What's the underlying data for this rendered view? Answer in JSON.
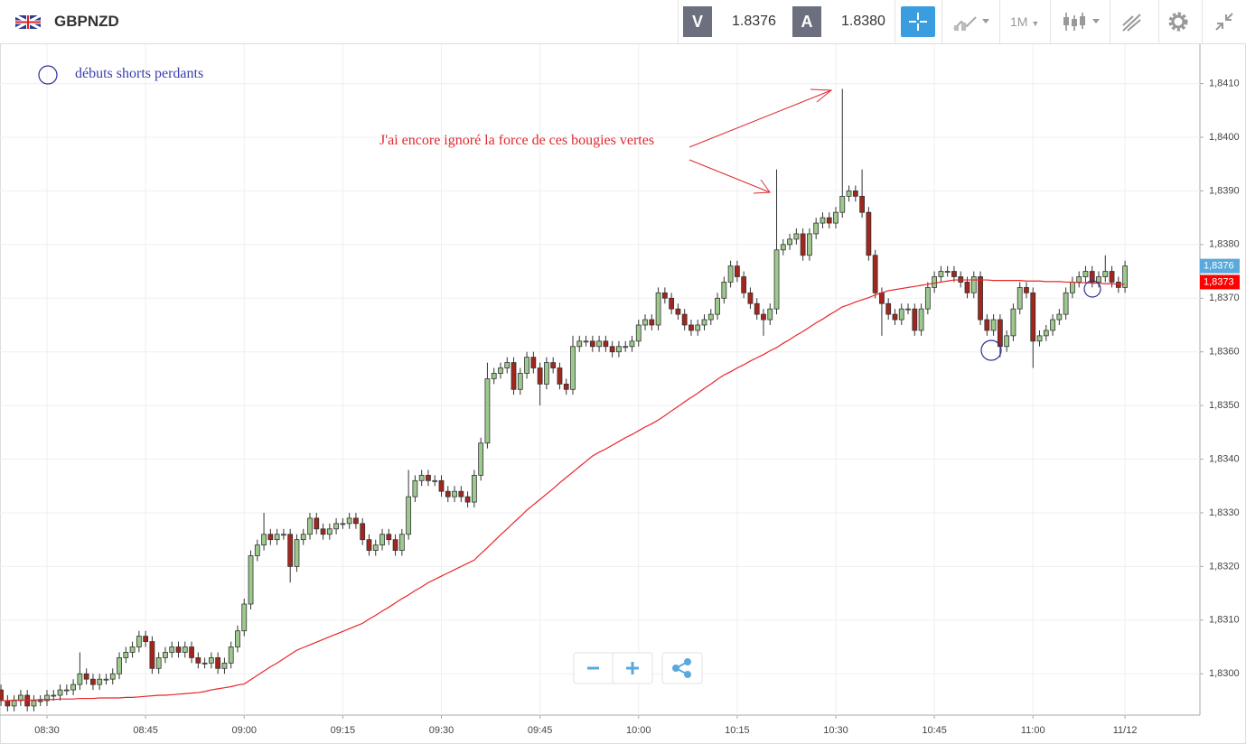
{
  "header": {
    "symbol": "GBPNZD",
    "bid_label": "V",
    "bid": "1.8376",
    "ask_label": "A",
    "ask": "1.8380",
    "timeframe": "1M"
  },
  "chart_data": {
    "type": "candlestick",
    "categories": [
      null,
      null,
      null,
      null,
      null,
      null,
      null,
      "08:30",
      null,
      null,
      null,
      null,
      null,
      null,
      null,
      null,
      null,
      null,
      null,
      null,
      null,
      null,
      "08:45",
      null,
      null,
      null,
      null,
      null,
      null,
      null,
      null,
      null,
      null,
      null,
      null,
      null,
      null,
      "09:00",
      null,
      null,
      null,
      null,
      null,
      null,
      null,
      null,
      null,
      null,
      null,
      null,
      null,
      null,
      "09:15",
      null,
      null,
      null,
      null,
      null,
      null,
      null,
      null,
      null,
      null,
      null,
      null,
      null,
      null,
      "09:30",
      null,
      null,
      null,
      null,
      null,
      null,
      null,
      null,
      null,
      null,
      null,
      null,
      null,
      null,
      "09:45",
      null,
      null,
      null,
      null,
      null,
      null,
      null,
      null,
      null,
      null,
      null,
      null,
      null,
      null,
      "10:00",
      null,
      null,
      null,
      null,
      null,
      null,
      null,
      null,
      null,
      null,
      null,
      null,
      null,
      null,
      "10:15",
      null,
      null,
      null,
      null,
      null,
      null,
      null,
      null,
      null,
      null,
      null,
      null,
      null,
      null,
      "10:30",
      null,
      null,
      null,
      null,
      null,
      null,
      null,
      null,
      null,
      null,
      null,
      null,
      null,
      null,
      "10:45",
      null,
      null,
      null,
      null,
      null,
      null,
      null,
      null,
      null,
      null,
      null,
      null,
      null,
      null,
      "11:00",
      null,
      null,
      null,
      null,
      null,
      null,
      null,
      null,
      null,
      null,
      null,
      null,
      null,
      "11/12"
    ],
    "open": [
      1.8297,
      1.8295,
      1.8294,
      1.8295,
      1.8296,
      1.8294,
      1.8295,
      1.8295,
      1.8296,
      1.8296,
      1.8297,
      1.8297,
      1.8298,
      1.83,
      1.8299,
      1.8298,
      1.8299,
      1.8299,
      1.83,
      1.8303,
      1.8304,
      1.8305,
      1.8307,
      1.8306,
      1.8301,
      1.8303,
      1.8304,
      1.8305,
      1.8304,
      1.8305,
      1.8303,
      1.8302,
      1.8302,
      1.8303,
      1.8301,
      1.8302,
      1.8305,
      1.8308,
      1.8313,
      1.8322,
      1.8324,
      1.8326,
      1.8325,
      1.8326,
      1.8326,
      1.832,
      1.8325,
      1.8326,
      1.8329,
      1.8327,
      1.8326,
      1.8327,
      1.8328,
      1.8328,
      1.8329,
      1.8328,
      1.8325,
      1.8323,
      1.8324,
      1.8326,
      1.8325,
      1.8323,
      1.8326,
      1.8333,
      1.8336,
      1.8337,
      1.8336,
      1.8336,
      1.8334,
      1.8333,
      1.8334,
      1.8333,
      1.8332,
      1.8337,
      1.8343,
      1.8355,
      1.8356,
      1.8357,
      1.8358,
      1.8353,
      1.8356,
      1.8359,
      1.8357,
      1.8354,
      1.8358,
      1.8357,
      1.8354,
      1.8353,
      1.8361,
      1.8362,
      1.8362,
      1.8361,
      1.8362,
      1.8361,
      1.836,
      1.8361,
      1.8361,
      1.8362,
      1.8365,
      1.8366,
      1.8365,
      1.8371,
      1.837,
      1.8368,
      1.8367,
      1.8365,
      1.8364,
      1.8365,
      1.8366,
      1.8367,
      1.837,
      1.8373,
      1.8376,
      1.8374,
      1.8371,
      1.8369,
      1.8367,
      1.8366,
      1.8368,
      1.8379,
      1.838,
      1.8381,
      1.8382,
      1.8378,
      1.8382,
      1.8384,
      1.8385,
      1.8384,
      1.8386,
      1.8389,
      1.839,
      1.8389,
      1.8386,
      1.8378,
      1.8371,
      1.8369,
      1.8367,
      1.8366,
      1.8368,
      1.8368,
      1.8364,
      1.8368,
      1.8372,
      1.8374,
      1.8375,
      1.8375,
      1.8374,
      1.8373,
      1.8371,
      1.8374,
      1.8366,
      1.8364,
      1.8366,
      1.8361,
      1.8363,
      1.8368,
      1.8372,
      1.8371,
      1.8362,
      1.8363,
      1.8364,
      1.8366,
      1.8367,
      1.8371,
      1.8373,
      1.8374,
      1.8375,
      1.8373,
      1.8374,
      1.8375,
      1.8373,
      1.8372
    ],
    "high": [
      1.8298,
      1.8296,
      1.8296,
      1.8297,
      1.8297,
      1.8296,
      1.8296,
      1.8297,
      1.8297,
      1.8298,
      1.8298,
      1.8299,
      1.8304,
      1.8301,
      1.83,
      1.83,
      1.83,
      1.8301,
      1.8304,
      1.8305,
      1.8306,
      1.8308,
      1.8308,
      1.8307,
      1.8304,
      1.8305,
      1.8306,
      1.8306,
      1.8306,
      1.8306,
      1.8304,
      1.8303,
      1.8304,
      1.8304,
      1.8303,
      1.8306,
      1.8309,
      1.8314,
      1.8323,
      1.8325,
      1.833,
      1.8327,
      1.8327,
      1.8327,
      1.8327,
      1.8326,
      1.8327,
      1.833,
      1.833,
      1.8328,
      1.8328,
      1.8329,
      1.8329,
      1.833,
      1.833,
      1.8329,
      1.8326,
      1.8325,
      1.8327,
      1.8327,
      1.8326,
      1.8327,
      1.8338,
      1.8337,
      1.8338,
      1.8338,
      1.8337,
      1.8337,
      1.8335,
      1.8335,
      1.8335,
      1.8334,
      1.8338,
      1.8344,
      1.8358,
      1.8357,
      1.8358,
      1.8359,
      1.8359,
      1.8357,
      1.836,
      1.836,
      1.8358,
      1.8359,
      1.8359,
      1.8358,
      1.8355,
      1.8363,
      1.8363,
      1.8363,
      1.8363,
      1.8363,
      1.8363,
      1.8362,
      1.8362,
      1.8362,
      1.8363,
      1.8366,
      1.8367,
      1.8367,
      1.8372,
      1.8372,
      1.8371,
      1.8369,
      1.8368,
      1.8366,
      1.8366,
      1.8367,
      1.8368,
      1.8371,
      1.8374,
      1.8377,
      1.8377,
      1.8375,
      1.8372,
      1.837,
      1.8368,
      1.8369,
      1.8394,
      1.8381,
      1.8382,
      1.8383,
      1.8383,
      1.8383,
      1.8385,
      1.8386,
      1.8386,
      1.8387,
      1.8409,
      1.8391,
      1.8391,
      1.8394,
      1.8387,
      1.8379,
      1.8372,
      1.837,
      1.8368,
      1.8369,
      1.8369,
      1.8369,
      1.8369,
      1.8373,
      1.8375,
      1.8376,
      1.8376,
      1.8376,
      1.8375,
      1.8374,
      1.8375,
      1.8375,
      1.8367,
      1.8367,
      1.8367,
      1.8364,
      1.8369,
      1.8373,
      1.8373,
      1.8372,
      1.8364,
      1.8365,
      1.8367,
      1.8368,
      1.8372,
      1.8374,
      1.8375,
      1.8376,
      1.8376,
      1.8375,
      1.8378,
      1.8376,
      1.8374,
      1.8377
    ],
    "low": [
      1.8294,
      1.8293,
      1.8293,
      1.8294,
      1.8293,
      1.8293,
      1.8294,
      1.8294,
      1.8295,
      1.8295,
      1.8296,
      1.8296,
      1.8297,
      1.8298,
      1.8297,
      1.8297,
      1.8298,
      1.8298,
      1.8299,
      1.8302,
      1.8303,
      1.8304,
      1.8305,
      1.83,
      1.83,
      1.8302,
      1.8303,
      1.8303,
      1.8303,
      1.8302,
      1.8301,
      1.8301,
      1.8301,
      1.83,
      1.83,
      1.8301,
      1.8304,
      1.8307,
      1.8312,
      1.8321,
      1.8323,
      1.8324,
      1.8324,
      1.8325,
      1.8317,
      1.8319,
      1.8324,
      1.8325,
      1.8326,
      1.8325,
      1.8325,
      1.8326,
      1.8327,
      1.8327,
      1.8327,
      1.8324,
      1.8322,
      1.8322,
      1.8323,
      1.8324,
      1.8322,
      1.8322,
      1.8325,
      1.8332,
      1.8335,
      1.8335,
      1.8335,
      1.8333,
      1.8332,
      1.8332,
      1.8332,
      1.8331,
      1.8331,
      1.8336,
      1.8342,
      1.8354,
      1.8355,
      1.8356,
      1.8352,
      1.8352,
      1.8355,
      1.8356,
      1.835,
      1.8353,
      1.8356,
      1.8353,
      1.8352,
      1.8352,
      1.836,
      1.8361,
      1.836,
      1.836,
      1.836,
      1.8359,
      1.8359,
      1.836,
      1.836,
      1.8361,
      1.8364,
      1.8364,
      1.8364,
      1.8369,
      1.8367,
      1.8366,
      1.8364,
      1.8363,
      1.8363,
      1.8364,
      1.8365,
      1.8366,
      1.8369,
      1.8372,
      1.8373,
      1.837,
      1.8368,
      1.8366,
      1.8363,
      1.8365,
      1.8367,
      1.8378,
      1.8379,
      1.838,
      1.8377,
      1.8377,
      1.8381,
      1.8383,
      1.8383,
      1.8383,
      1.8385,
      1.8388,
      1.8388,
      1.8385,
      1.8377,
      1.837,
      1.8363,
      1.8366,
      1.8365,
      1.8365,
      1.8367,
      1.8363,
      1.8363,
      1.8367,
      1.8371,
      1.8373,
      1.8374,
      1.8373,
      1.8372,
      1.837,
      1.837,
      1.8365,
      1.8363,
      1.8363,
      1.8359,
      1.836,
      1.8362,
      1.8367,
      1.837,
      1.8357,
      1.8361,
      1.8362,
      1.8363,
      1.8365,
      1.8366,
      1.837,
      1.8372,
      1.8373,
      1.8372,
      1.8372,
      1.8373,
      1.8372,
      1.8371,
      1.8371
    ],
    "close": [
      1.8295,
      1.8294,
      1.8295,
      1.8296,
      1.8294,
      1.8295,
      1.8295,
      1.8296,
      1.8296,
      1.8297,
      1.8297,
      1.8298,
      1.83,
      1.8299,
      1.8298,
      1.8299,
      1.8299,
      1.83,
      1.8303,
      1.8304,
      1.8305,
      1.8307,
      1.8306,
      1.8301,
      1.8303,
      1.8304,
      1.8305,
      1.8304,
      1.8305,
      1.8303,
      1.8302,
      1.8302,
      1.8303,
      1.8301,
      1.8302,
      1.8305,
      1.8308,
      1.8313,
      1.8322,
      1.8324,
      1.8326,
      1.8325,
      1.8326,
      1.8326,
      1.832,
      1.8325,
      1.8326,
      1.8329,
      1.8327,
      1.8326,
      1.8327,
      1.8328,
      1.8328,
      1.8329,
      1.8328,
      1.8325,
      1.8323,
      1.8324,
      1.8326,
      1.8325,
      1.8323,
      1.8326,
      1.8333,
      1.8336,
      1.8337,
      1.8336,
      1.8336,
      1.8334,
      1.8333,
      1.8334,
      1.8333,
      1.8332,
      1.8337,
      1.8343,
      1.8355,
      1.8356,
      1.8357,
      1.8358,
      1.8353,
      1.8356,
      1.8359,
      1.8357,
      1.8354,
      1.8358,
      1.8357,
      1.8354,
      1.8353,
      1.8361,
      1.8362,
      1.8362,
      1.8361,
      1.8362,
      1.8361,
      1.836,
      1.8361,
      1.8361,
      1.8362,
      1.8365,
      1.8366,
      1.8365,
      1.8371,
      1.837,
      1.8368,
      1.8367,
      1.8365,
      1.8364,
      1.8365,
      1.8366,
      1.8367,
      1.837,
      1.8373,
      1.8376,
      1.8374,
      1.8371,
      1.8369,
      1.8367,
      1.8366,
      1.8368,
      1.8379,
      1.838,
      1.8381,
      1.8382,
      1.8378,
      1.8382,
      1.8384,
      1.8385,
      1.8384,
      1.8386,
      1.8389,
      1.839,
      1.8389,
      1.8386,
      1.8378,
      1.8371,
      1.8369,
      1.8367,
      1.8366,
      1.8368,
      1.8368,
      1.8364,
      1.8368,
      1.8372,
      1.8374,
      1.8375,
      1.8375,
      1.8374,
      1.8373,
      1.8371,
      1.8374,
      1.8366,
      1.8364,
      1.8366,
      1.8361,
      1.8363,
      1.8368,
      1.8372,
      1.8371,
      1.8362,
      1.8363,
      1.8364,
      1.8366,
      1.8367,
      1.8371,
      1.8373,
      1.8374,
      1.8375,
      1.8373,
      1.8374,
      1.8375,
      1.8373,
      1.8372,
      1.8376
    ],
    "colors": {
      "up": "#9dc98e",
      "down": "#a3261c",
      "outline": "#333333"
    },
    "ma": {
      "color": "#e8262a",
      "values": [
        1.8295,
        1.8295,
        1.82951,
        1.82951,
        1.82951,
        1.82951,
        1.82952,
        1.82952,
        1.82952,
        1.82953,
        1.82953,
        1.82953,
        1.82954,
        1.82954,
        1.82954,
        1.82955,
        1.82955,
        1.82955,
        1.82955,
        1.82956,
        1.82956,
        1.82957,
        1.82958,
        1.82959,
        1.8296,
        1.8296,
        1.82961,
        1.82962,
        1.82963,
        1.82964,
        1.82965,
        1.82967,
        1.8297,
        1.82972,
        1.82974,
        1.82976,
        1.82979,
        1.82981,
        1.82989,
        1.82997,
        1.83005,
        1.83013,
        1.8302,
        1.83028,
        1.83036,
        1.83044,
        1.83049,
        1.83054,
        1.83059,
        1.83064,
        1.83069,
        1.83074,
        1.83079,
        1.83084,
        1.83089,
        1.83094,
        1.83102,
        1.83109,
        1.83117,
        1.83124,
        1.83132,
        1.8314,
        1.83147,
        1.83155,
        1.83162,
        1.8317,
        1.83176,
        1.83182,
        1.83188,
        1.83194,
        1.832,
        1.83206,
        1.83212,
        1.83224,
        1.83235,
        1.83247,
        1.83259,
        1.8327,
        1.83282,
        1.83293,
        1.83305,
        1.83315,
        1.83325,
        1.83335,
        1.83345,
        1.83356,
        1.83366,
        1.83376,
        1.83386,
        1.83396,
        1.83406,
        1.83413,
        1.83419,
        1.83426,
        1.83433,
        1.8344,
        1.83446,
        1.83453,
        1.8346,
        1.83466,
        1.83473,
        1.83481,
        1.8349,
        1.83498,
        1.83507,
        1.83515,
        1.83523,
        1.83532,
        1.8354,
        1.83549,
        1.83557,
        1.83563,
        1.8357,
        1.83576,
        1.83583,
        1.83589,
        1.83595,
        1.83602,
        1.83608,
        1.83616,
        1.83623,
        1.83631,
        1.83638,
        1.83646,
        1.83654,
        1.83661,
        1.83669,
        1.83676,
        1.83684,
        1.83688,
        1.83693,
        1.83697,
        1.83701,
        1.83706,
        1.8371,
        1.83714,
        1.83716,
        1.83718,
        1.8372,
        1.83722,
        1.83724,
        1.83726,
        1.83728,
        1.8373,
        1.83732,
        1.83734,
        1.83734,
        1.83734,
        1.83734,
        1.83734,
        1.83734,
        1.83733,
        1.83733,
        1.83733,
        1.83733,
        1.83733,
        1.83732,
        1.83732,
        1.83732,
        1.83731,
        1.83731,
        1.83731,
        1.8373,
        1.8373,
        1.83729,
        1.83729,
        1.83728,
        1.83728,
        1.83727,
        1.83727,
        1.83726,
        1.83726
      ]
    },
    "ylim": [
      1.82923,
      1.84175
    ],
    "yticks": [
      {
        "value": 1.83,
        "label": "1,8300"
      },
      {
        "value": 1.831,
        "label": "1,8310"
      },
      {
        "value": 1.832,
        "label": "1,8320"
      },
      {
        "value": 1.833,
        "label": "1,8330"
      },
      {
        "value": 1.834,
        "label": "1,8340"
      },
      {
        "value": 1.835,
        "label": "1,8350"
      },
      {
        "value": 1.836,
        "label": "1,8360"
      },
      {
        "value": 1.837,
        "label": "1,8370"
      },
      {
        "value": 1.838,
        "label": "1,8380"
      },
      {
        "value": 1.839,
        "label": "1,8390"
      },
      {
        "value": 1.84,
        "label": "1,8400"
      },
      {
        "value": 1.841,
        "label": "1,8410"
      }
    ],
    "grid": true,
    "price_flags": [
      {
        "value": 1.8376,
        "label": "1,8376",
        "color": "#5aa9dc"
      },
      {
        "value": 1.8373,
        "label": "1,8373",
        "color": "#ff0000"
      }
    ],
    "annotations": [
      {
        "text": "débuts shorts perdants",
        "color": "#3a3db0"
      },
      {
        "text": "J'ai encore ignoré la force de ces bougies vertes",
        "color": "#e0282e"
      }
    ]
  }
}
